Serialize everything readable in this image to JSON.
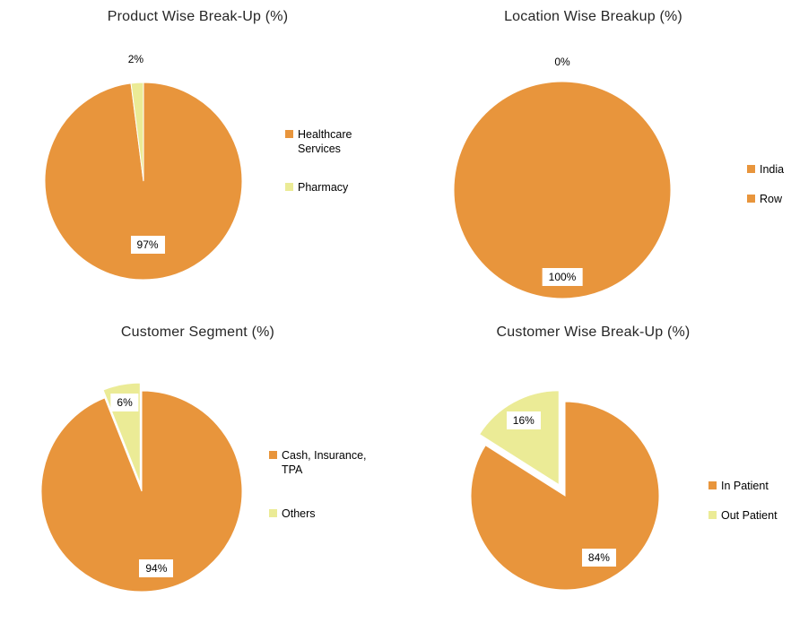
{
  "page": {
    "background": "#FFFFFF"
  },
  "colors": {
    "orange": "#E8953C",
    "yellow": "#EBEB96",
    "label_text": "#000000",
    "title_text": "#262626"
  },
  "chart_data": [
    {
      "type": "pie",
      "title": "Product Wise Break-Up (%)",
      "legend_position": "right",
      "slices": [
        {
          "label": "Healthcare Services",
          "value": 97,
          "display": "97%",
          "color": "#E8953C"
        },
        {
          "label": "Pharmacy",
          "value": 2,
          "display": "2%",
          "color": "#EBEB96"
        }
      ]
    },
    {
      "type": "pie",
      "title": "Location Wise Breakup (%)",
      "legend_position": "right",
      "slices": [
        {
          "label": "India",
          "value": 100,
          "display": "100%",
          "color": "#E8953C"
        },
        {
          "label": "Row",
          "value": 0,
          "display": "0%",
          "color": "#E8953C"
        }
      ]
    },
    {
      "type": "pie",
      "title": "Customer Segment (%)",
      "legend_position": "right",
      "slices": [
        {
          "label": "Cash, Insurance, TPA",
          "value": 94,
          "display": "94%",
          "color": "#E8953C"
        },
        {
          "label": "Others",
          "value": 6,
          "display": "6%",
          "color": "#EBEB96"
        }
      ]
    },
    {
      "type": "pie",
      "title": "Customer Wise Break-Up (%)",
      "legend_position": "right",
      "slices": [
        {
          "label": "In Patient",
          "value": 84,
          "display": "84%",
          "color": "#E8953C"
        },
        {
          "label": "Out Patient",
          "value": 16,
          "display": "16%",
          "color": "#EBEB96"
        }
      ]
    }
  ]
}
